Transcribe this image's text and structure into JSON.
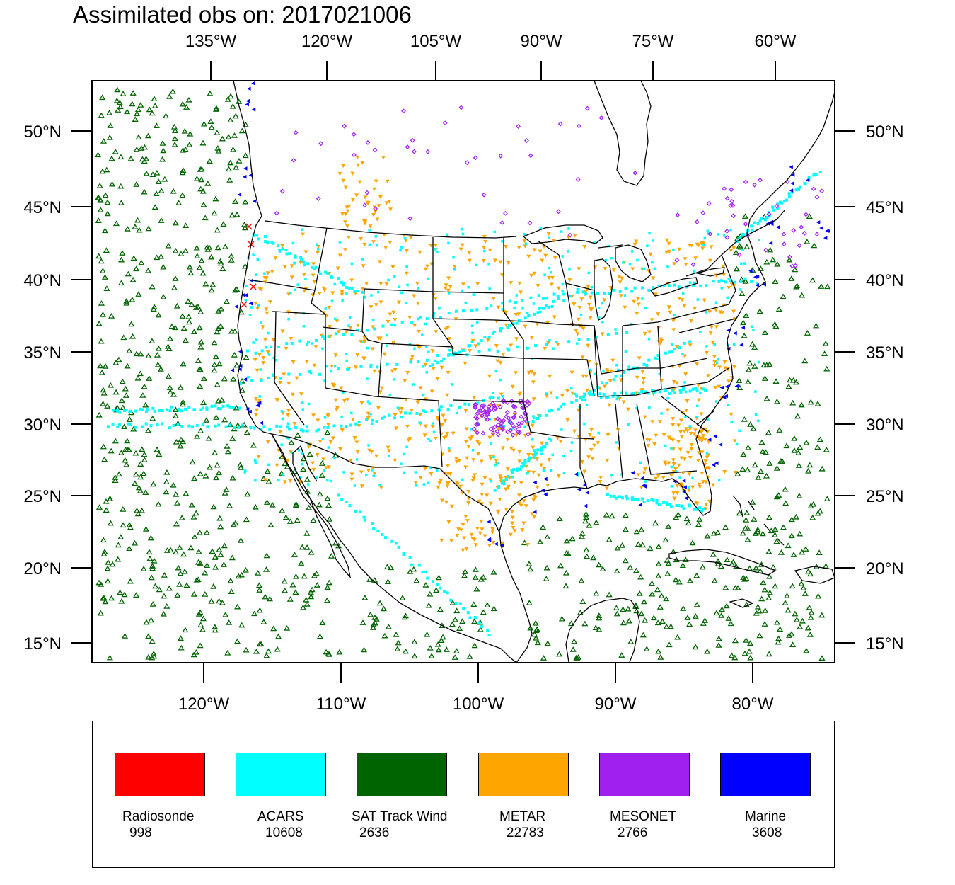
{
  "title": "Assimilated obs on: 2017021006",
  "axes": {
    "top_lon_labels": [
      "135°W",
      "120°W",
      "105°W",
      "90°W",
      "75°W",
      "60°W"
    ],
    "bottom_lon_labels": [
      "120°W",
      "110°W",
      "100°W",
      "90°W",
      "80°W"
    ],
    "lat_labels": [
      "50°N",
      "45°N",
      "40°N",
      "35°N",
      "30°N",
      "25°N",
      "20°N",
      "15°N"
    ]
  },
  "map": {
    "region": "Continental United States, Gulf of Mexico and adjacent oceans",
    "lat_range": [
      13.7,
      53.9
    ],
    "lon_range": [
      -128,
      -74
    ]
  },
  "legend": [
    {
      "name": "Radiosonde",
      "count": "998",
      "color": "#ff0000"
    },
    {
      "name": "ACARS",
      "count": "10608",
      "color": "#00ffff"
    },
    {
      "name": "SAT Track Wind",
      "count": "2636",
      "color": "#006400"
    },
    {
      "name": "METAR",
      "count": "22783",
      "color": "#ffa500"
    },
    {
      "name": "MESONET",
      "count": "2766",
      "color": "#a020f0"
    },
    {
      "name": "Marine",
      "count": "3608",
      "color": "#0000ff"
    }
  ]
}
